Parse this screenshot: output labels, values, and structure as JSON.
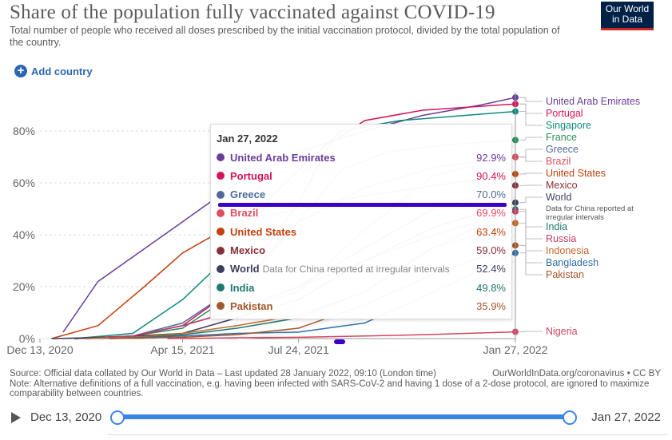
{
  "header": {
    "title": "Share of the population fully vaccinated against COVID-19",
    "subtitle": "Total number of people who received all doses prescribed by the initial vaccination protocol, divided by the total population of the country.",
    "logo_line1": "Our World",
    "logo_line2": "in Data",
    "add_country_label": "Add country"
  },
  "tooltip": {
    "date": "Jan 27, 2022",
    "rows": [
      {
        "name": "United Arab Emirates",
        "value": "92.9%",
        "color": "#6b3d9a",
        "note": ""
      },
      {
        "name": "Portugal",
        "value": "90.4%",
        "color": "#d4145a",
        "note": ""
      },
      {
        "name": "Greece",
        "value": "70.0%",
        "color": "#4c6a9c",
        "note": ""
      },
      {
        "name": "Brazil",
        "value": "69.9%",
        "color": "#e04e5f",
        "note": ""
      },
      {
        "name": "United States",
        "value": "63.4%",
        "color": "#c2410c",
        "note": ""
      },
      {
        "name": "Mexico",
        "value": "59.0%",
        "color": "#883039",
        "note": ""
      },
      {
        "name": "World",
        "value": "52.4%",
        "color": "#3b3f5c",
        "note": "Data for China reported at irregular intervals"
      },
      {
        "name": "India",
        "value": "49.8%",
        "color": "#1d7a6e",
        "note": ""
      },
      {
        "name": "Pakistan",
        "value": "35.9%",
        "color": "#a3572a",
        "note": ""
      }
    ]
  },
  "chart_data": {
    "type": "line",
    "title": "Share of the population fully vaccinated against COVID-19",
    "ylabel": "",
    "xlabel": "",
    "ylim": [
      0,
      95
    ],
    "x_tick_labels": [
      "Dec 13, 2020",
      "Apr 15, 2021",
      "Jul 24, 2021",
      "Jan 27, 2022"
    ],
    "y_tick_labels": [
      "0%",
      "20%",
      "40%",
      "60%",
      "80%"
    ],
    "y_ticks": [
      0,
      20,
      40,
      60,
      80
    ],
    "x_domain_days": [
      0,
      410
    ],
    "x_tick_days": [
      0,
      123,
      223,
      410
    ],
    "series": [
      {
        "name": "United Arab Emirates",
        "color": "#6b3d9a",
        "end_value": 92.9,
        "points": [
          [
            20,
            2.5
          ],
          [
            50,
            22
          ],
          [
            123,
            45
          ],
          [
            170,
            60
          ],
          [
            223,
            72
          ],
          [
            280,
            80
          ],
          [
            330,
            86
          ],
          [
            380,
            90
          ],
          [
            410,
            92.9
          ]
        ]
      },
      {
        "name": "Portugal",
        "color": "#d4145a",
        "end_value": 90.4,
        "points": [
          [
            30,
            0
          ],
          [
            80,
            1
          ],
          [
            123,
            5
          ],
          [
            170,
            20
          ],
          [
            223,
            52
          ],
          [
            250,
            75
          ],
          [
            280,
            84
          ],
          [
            330,
            88
          ],
          [
            380,
            89.5
          ],
          [
            410,
            90.4
          ]
        ]
      },
      {
        "name": "Singapore",
        "color": "#0e8a7a",
        "end_value": 87.5,
        "points": [
          [
            30,
            0
          ],
          [
            80,
            2
          ],
          [
            123,
            15
          ],
          [
            170,
            35
          ],
          [
            200,
            55
          ],
          [
            223,
            65
          ],
          [
            260,
            80
          ],
          [
            310,
            84
          ],
          [
            410,
            87.5
          ]
        ]
      },
      {
        "name": "France",
        "color": "#2a8f5b",
        "end_value": 76.5,
        "points": [
          [
            30,
            0
          ],
          [
            80,
            1
          ],
          [
            123,
            4
          ],
          [
            170,
            18
          ],
          [
            223,
            45
          ],
          [
            260,
            65
          ],
          [
            300,
            72
          ],
          [
            360,
            75
          ],
          [
            410,
            76.5
          ]
        ]
      },
      {
        "name": "Greece",
        "color": "#4c6a9c",
        "end_value": 70.0,
        "points": [
          [
            30,
            0
          ],
          [
            80,
            1
          ],
          [
            123,
            6
          ],
          [
            170,
            20
          ],
          [
            223,
            45
          ],
          [
            280,
            58
          ],
          [
            340,
            66
          ],
          [
            410,
            70.0
          ]
        ]
      },
      {
        "name": "Brazil",
        "color": "#e04e5f",
        "end_value": 69.9,
        "points": [
          [
            40,
            0
          ],
          [
            80,
            1
          ],
          [
            123,
            5
          ],
          [
            170,
            11
          ],
          [
            223,
            18
          ],
          [
            280,
            42
          ],
          [
            340,
            63
          ],
          [
            410,
            69.9
          ]
        ]
      },
      {
        "name": "United States",
        "color": "#c2410c",
        "end_value": 63.4,
        "points": [
          [
            10,
            0
          ],
          [
            50,
            5
          ],
          [
            90,
            20
          ],
          [
            123,
            33
          ],
          [
            170,
            45
          ],
          [
            223,
            50
          ],
          [
            280,
            55
          ],
          [
            340,
            59
          ],
          [
            410,
            63.4
          ]
        ]
      },
      {
        "name": "Mexico",
        "color": "#883039",
        "end_value": 59.0,
        "points": [
          [
            30,
            0
          ],
          [
            80,
            1
          ],
          [
            123,
            5
          ],
          [
            170,
            11
          ],
          [
            223,
            20
          ],
          [
            280,
            35
          ],
          [
            340,
            50
          ],
          [
            410,
            59.0
          ]
        ]
      },
      {
        "name": "World",
        "color": "#3b3f5c",
        "end_value": 52.4,
        "points": [
          [
            10,
            0
          ],
          [
            60,
            0.5
          ],
          [
            123,
            2
          ],
          [
            170,
            8
          ],
          [
            223,
            15
          ],
          [
            280,
            30
          ],
          [
            340,
            43
          ],
          [
            410,
            52.4
          ]
        ]
      },
      {
        "name": "India",
        "color": "#1d7a6e",
        "end_value": 49.8,
        "points": [
          [
            40,
            0
          ],
          [
            80,
            0.3
          ],
          [
            123,
            1.5
          ],
          [
            170,
            4
          ],
          [
            223,
            8
          ],
          [
            280,
            18
          ],
          [
            330,
            33
          ],
          [
            410,
            49.8
          ]
        ]
      },
      {
        "name": "Russia",
        "color": "#c13b6b",
        "end_value": 49.0,
        "points": [
          [
            40,
            0
          ],
          [
            80,
            1
          ],
          [
            123,
            5
          ],
          [
            170,
            11
          ],
          [
            223,
            20
          ],
          [
            280,
            30
          ],
          [
            340,
            40
          ],
          [
            410,
            49.0
          ]
        ]
      },
      {
        "name": "Indonesia",
        "color": "#c8672b",
        "end_value": 44.5,
        "points": [
          [
            40,
            0
          ],
          [
            80,
            0.5
          ],
          [
            123,
            2
          ],
          [
            170,
            5
          ],
          [
            223,
            9
          ],
          [
            280,
            18
          ],
          [
            340,
            35
          ],
          [
            410,
            44.5
          ]
        ]
      },
      {
        "name": "Bangladesh",
        "color": "#2f6fa8",
        "end_value": 33.0,
        "points": [
          [
            60,
            0
          ],
          [
            123,
            1
          ],
          [
            170,
            2
          ],
          [
            223,
            2.5
          ],
          [
            280,
            6
          ],
          [
            340,
            18
          ],
          [
            410,
            33.0
          ]
        ]
      },
      {
        "name": "Pakistan",
        "color": "#a3572a",
        "end_value": 35.9,
        "points": [
          [
            60,
            0
          ],
          [
            123,
            0.5
          ],
          [
            170,
            1.5
          ],
          [
            223,
            4
          ],
          [
            280,
            13
          ],
          [
            340,
            25
          ],
          [
            410,
            35.9
          ]
        ]
      },
      {
        "name": "Nigeria",
        "color": "#d3455f",
        "end_value": 2.6,
        "points": [
          [
            110,
            0
          ],
          [
            170,
            0.3
          ],
          [
            223,
            0.5
          ],
          [
            280,
            1
          ],
          [
            340,
            1.6
          ],
          [
            410,
            2.6
          ]
        ]
      }
    ],
    "right_labels": [
      {
        "name": "United Arab Emirates",
        "color": "#6b3d9a",
        "note": ""
      },
      {
        "name": "Portugal",
        "color": "#d4145a",
        "note": ""
      },
      {
        "name": "Singapore",
        "color": "#0e8a7a",
        "note": ""
      },
      {
        "name": "France",
        "color": "#2a8f5b",
        "note": ""
      },
      {
        "name": "Greece",
        "color": "#4c6a9c",
        "note": ""
      },
      {
        "name": "Brazil",
        "color": "#e04e5f",
        "note": ""
      },
      {
        "name": "United States",
        "color": "#c2410c",
        "note": ""
      },
      {
        "name": "Mexico",
        "color": "#883039",
        "note": ""
      },
      {
        "name": "World",
        "color": "#3b3f5c",
        "note": "Data for China reported at irregular intervals"
      },
      {
        "name": "India",
        "color": "#1d7a6e",
        "note": ""
      },
      {
        "name": "Russia",
        "color": "#c13b6b",
        "note": ""
      },
      {
        "name": "Indonesia",
        "color": "#c8672b",
        "note": ""
      },
      {
        "name": "Bangladesh",
        "color": "#2f6fa8",
        "note": ""
      },
      {
        "name": "Pakistan",
        "color": "#a3572a",
        "note": ""
      },
      {
        "name": "Nigeria",
        "color": "#d3455f",
        "note": ""
      }
    ],
    "hover_date": "Jan 27, 2022"
  },
  "footer": {
    "source": "Source: Official data collated by Our World in Data – Last updated 28 January 2022, 09:10 (London time)",
    "site": "OurWorldInData.org/coronavirus • CC BY",
    "note": "Note: Alternative definitions of a full vaccination, e.g. having been infected with SARS-CoV-2 and having 1 dose of a 2-dose protocol, are ignored to maximize comparability between countries."
  },
  "timeline": {
    "start_label": "Dec 13, 2020",
    "end_label": "Jan 27, 2022"
  }
}
